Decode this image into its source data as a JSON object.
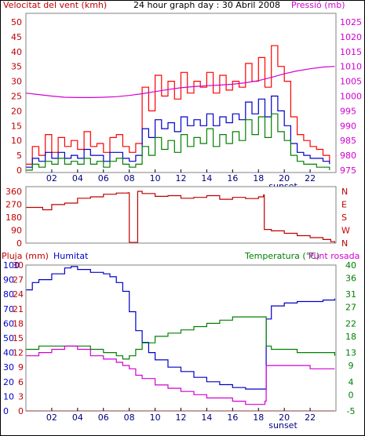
{
  "colors": {
    "background": "#ffffff",
    "frame": "#000000",
    "panel_border": "#808080",
    "wind_speed": "#ff0000",
    "wind_avg": "#0000c8",
    "wind_gust": "#008000",
    "pressure": "#d200d2",
    "direction": "#c00000",
    "rain": "#ff0000",
    "humidity": "#0000c8",
    "temperature": "#008000",
    "dew_point": "#d200d2",
    "axis_left": "#c00000",
    "axis_right": "#d200d2",
    "axis_temp": "#008000",
    "axis_hum": "#0000c8",
    "tick_text": "#000080"
  },
  "header": {
    "wind_label": "Velocitat del vent (kmh)",
    "title": "24 hour graph day : 30 Abril 2008",
    "pressure_label": "Pressió (mb)"
  },
  "x_axis": {
    "hour_labels": [
      "02",
      "04",
      "06",
      "08",
      "10",
      "12",
      "14",
      "16",
      "18",
      "20",
      "22"
    ],
    "sunset_label": "sunset",
    "sunset_hour": 19.9
  },
  "chart_data": [
    {
      "type": "line",
      "name": "wind-panel",
      "title": "24 hour graph day : 30 Abril 2008",
      "ylabel": "Velocitat del vent (kmh)",
      "y2label": "Pressió (mb)",
      "xlim": [
        0,
        24
      ],
      "ylim": [
        0,
        50
      ],
      "y2lim": [
        975,
        1025
      ],
      "y_ticks": [
        0,
        5,
        10,
        15,
        20,
        25,
        30,
        35,
        40,
        45,
        50
      ],
      "y2_ticks": [
        975,
        980,
        985,
        990,
        995,
        1000,
        1005,
        1010,
        1015,
        1020,
        1025
      ],
      "series": [
        {
          "key": "gust",
          "x": [
            0,
            0.5,
            1,
            1.5,
            2,
            2.5,
            3,
            3.5,
            4,
            4.5,
            5,
            5.5,
            6,
            6.5,
            7,
            7.5,
            8,
            8.5,
            9,
            9.5,
            10,
            10.5,
            11,
            11.5,
            12,
            12.5,
            13,
            13.5,
            14,
            14.5,
            15,
            15.5,
            16,
            16.5,
            17,
            17.5,
            18,
            18.5,
            19,
            19.5,
            20,
            20.5,
            21,
            21.5,
            22,
            22.5,
            23,
            23.5
          ],
          "values": [
            2,
            8,
            5,
            12,
            6,
            11,
            8,
            10,
            7,
            13,
            8,
            9,
            6,
            11,
            12,
            8,
            6,
            9,
            28,
            20,
            32,
            25,
            30,
            24,
            33,
            26,
            30,
            28,
            33,
            26,
            32,
            27,
            30,
            28,
            36,
            30,
            38,
            28,
            42,
            35,
            30,
            18,
            12,
            10,
            8,
            7,
            5,
            3
          ]
        },
        {
          "key": "average",
          "x": [
            0,
            0.5,
            1,
            1.5,
            2,
            2.5,
            3,
            3.5,
            4,
            4.5,
            5,
            5.5,
            6,
            6.5,
            7,
            7.5,
            8,
            8.5,
            9,
            9.5,
            10,
            10.5,
            11,
            11.5,
            12,
            12.5,
            13,
            13.5,
            14,
            14.5,
            15,
            15.5,
            16,
            16.5,
            17,
            17.5,
            18,
            18.5,
            19,
            19.5,
            20,
            20.5,
            21,
            21.5,
            22,
            22.5,
            23,
            23.5
          ],
          "values": [
            1,
            4,
            3,
            6,
            4,
            6,
            4,
            5,
            4,
            7,
            5,
            5,
            3,
            6,
            6,
            4,
            3,
            5,
            14,
            11,
            17,
            14,
            16,
            13,
            18,
            15,
            17,
            15,
            19,
            15,
            18,
            16,
            19,
            17,
            23,
            19,
            24,
            18,
            25,
            20,
            15,
            9,
            6,
            5,
            4,
            4,
            3,
            2
          ]
        },
        {
          "key": "low",
          "x": [
            0,
            0.5,
            1,
            1.5,
            2,
            2.5,
            3,
            3.5,
            4,
            4.5,
            5,
            5.5,
            6,
            6.5,
            7,
            7.5,
            8,
            8.5,
            9,
            9.5,
            10,
            10.5,
            11,
            11.5,
            12,
            12.5,
            13,
            13.5,
            14,
            14.5,
            15,
            15.5,
            16,
            16.5,
            17,
            17.5,
            18,
            18.5,
            19,
            19.5,
            20,
            20.5,
            21,
            21.5,
            22,
            22.5,
            23,
            23.5
          ],
          "values": [
            0,
            2,
            1,
            3,
            2,
            4,
            2,
            3,
            2,
            4,
            2,
            3,
            1,
            3,
            4,
            2,
            1,
            2,
            8,
            5,
            11,
            7,
            10,
            6,
            12,
            8,
            11,
            9,
            14,
            8,
            12,
            9,
            13,
            10,
            17,
            12,
            18,
            11,
            19,
            13,
            10,
            5,
            3,
            2,
            2,
            1,
            1,
            0
          ]
        },
        {
          "key": "pressure",
          "axis": "y2",
          "x": [
            0,
            1,
            2,
            3,
            4,
            5,
            6,
            7,
            8,
            9,
            10,
            11,
            12,
            13,
            14,
            15,
            16,
            17,
            18,
            19,
            20,
            21,
            22,
            23,
            23.9
          ],
          "values": [
            1001,
            1000.5,
            1000,
            999.6,
            999.5,
            999.5,
            999.6,
            999.8,
            1000.2,
            1000.8,
            1001.5,
            1002.2,
            1002.8,
            1003.2,
            1003.5,
            1003.7,
            1004,
            1004.5,
            1005.2,
            1006.3,
            1007.5,
            1008.5,
            1009.2,
            1009.8,
            1010
          ]
        }
      ]
    },
    {
      "type": "line",
      "name": "direction-panel",
      "ylim": [
        0,
        360
      ],
      "y_ticks": [
        0,
        90,
        180,
        270,
        360
      ],
      "y2_ticks": [
        "N",
        "W",
        "S",
        "E",
        "N"
      ],
      "series": [
        {
          "key": "direction",
          "x": [
            0,
            1,
            1.3,
            2,
            3,
            4,
            5,
            6,
            7,
            7.9,
            8.0,
            8.05,
            8.6,
            8.65,
            9,
            10,
            11,
            12,
            13,
            14,
            15,
            16,
            17,
            18,
            18.4,
            18.45,
            19,
            20,
            21,
            22,
            23,
            23.6,
            23.9
          ],
          "values": [
            248,
            248,
            232,
            268,
            278,
            312,
            322,
            340,
            348,
            350,
            5,
            5,
            5,
            360,
            345,
            325,
            330,
            312,
            318,
            330,
            305,
            318,
            310,
            322,
            335,
            95,
            85,
            68,
            52,
            38,
            25,
            10,
            0
          ]
        }
      ]
    },
    {
      "type": "line",
      "name": "weather-panel",
      "ylabel": "Pluja (mm)",
      "y2label": "Humitat",
      "y3label": "Temperatura (°C)",
      "y4label": "Punt rosada",
      "ylim": [
        0,
        30
      ],
      "humidity_lim": [
        0,
        100
      ],
      "temp_lim": [
        -5,
        40
      ],
      "rain_ticks": [
        0,
        3,
        6,
        9,
        12,
        15,
        18,
        21,
        24,
        27,
        30
      ],
      "humidity_ticks": [
        0,
        10,
        20,
        30,
        40,
        50,
        60,
        70,
        80,
        90,
        100
      ],
      "temp_ticks": [
        -5,
        0,
        4,
        9,
        13,
        18,
        22,
        27,
        31,
        36,
        40
      ],
      "series": [
        {
          "key": "humidity",
          "axis": "humidity",
          "x": [
            0,
            0.5,
            1,
            2,
            3,
            3.5,
            4,
            5,
            6,
            6.5,
            7,
            7.5,
            8,
            8.5,
            9,
            9.5,
            10,
            11,
            12,
            13,
            14,
            15,
            16,
            17,
            18,
            18.5,
            18.6,
            19,
            20,
            21,
            22,
            23,
            23.9
          ],
          "values": [
            83,
            88,
            90,
            94,
            98,
            99,
            97,
            95,
            94,
            92,
            88,
            82,
            68,
            55,
            47,
            40,
            35,
            30,
            27,
            23,
            20,
            18,
            16,
            15,
            15,
            15,
            63,
            72,
            74,
            75,
            75,
            76,
            77
          ]
        },
        {
          "key": "temperature",
          "axis": "temp",
          "x": [
            0,
            1,
            2,
            3,
            4,
            5,
            6,
            7,
            7.5,
            8,
            8.5,
            9,
            10,
            11,
            12,
            13,
            14,
            15,
            16,
            17,
            18,
            18.5,
            18.6,
            19,
            20,
            21,
            22,
            23,
            23.9
          ],
          "values": [
            14,
            15,
            15,
            15,
            15,
            14,
            13,
            12,
            11,
            12,
            14,
            16,
            18,
            19,
            20,
            21,
            22,
            23,
            24,
            24,
            24,
            24,
            15,
            14,
            14,
            13,
            13,
            13,
            12
          ]
        },
        {
          "key": "dew_point",
          "axis": "temp",
          "x": [
            0,
            1,
            2,
            3,
            4,
            5,
            6,
            7,
            7.5,
            8,
            8.5,
            9,
            10,
            11,
            12,
            13,
            14,
            15,
            16,
            17,
            18,
            18.5,
            18.6,
            19,
            20,
            21,
            22,
            23,
            23.9
          ],
          "values": [
            12,
            13,
            14,
            15,
            14,
            12,
            11,
            10,
            9,
            8,
            6,
            5,
            3,
            2,
            1,
            0,
            -1,
            -1,
            -2,
            -3,
            -3,
            -2,
            9,
            9,
            9,
            9,
            8,
            8,
            8
          ]
        },
        {
          "key": "rain",
          "axis": "rain",
          "x": [
            0,
            23.9
          ],
          "values": [
            0,
            0
          ]
        }
      ]
    }
  ]
}
